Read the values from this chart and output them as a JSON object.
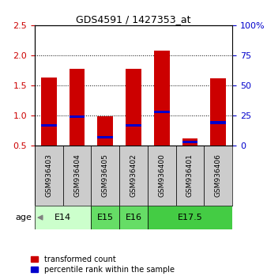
{
  "title": "GDS4591 / 1427353_at",
  "samples": [
    "GSM936403",
    "GSM936404",
    "GSM936405",
    "GSM936402",
    "GSM936400",
    "GSM936401",
    "GSM936406"
  ],
  "red_values": [
    1.63,
    1.78,
    0.98,
    1.78,
    2.08,
    0.62,
    1.62
  ],
  "blue_values": [
    0.84,
    0.98,
    0.64,
    0.84,
    1.06,
    0.56,
    0.88
  ],
  "red_bar_bottom": 0.5,
  "ylim": [
    0.5,
    2.5
  ],
  "yticks": [
    0.5,
    1.0,
    1.5,
    2.0,
    2.5
  ],
  "y2ticks": [
    0,
    25,
    50,
    75,
    100
  ],
  "y2labels": [
    "0",
    "25",
    "50",
    "75",
    "100%"
  ],
  "groups": [
    {
      "label": "E14",
      "start": 0,
      "end": 2,
      "color": "#ccffcc"
    },
    {
      "label": "E15",
      "start": 2,
      "end": 3,
      "color": "#66dd66"
    },
    {
      "label": "E16",
      "start": 3,
      "end": 4,
      "color": "#66dd66"
    },
    {
      "label": "E17.5",
      "start": 4,
      "end": 7,
      "color": "#44cc44"
    }
  ],
  "bar_color": "#cc0000",
  "blue_color": "#0000cc",
  "bar_width": 0.55,
  "bg_color": "#ffffff",
  "plot_bg": "#ffffff",
  "gray_bg": "#cccccc",
  "tick_color_left": "#cc0000",
  "tick_color_right": "#0000cc",
  "blue_bar_height": 0.04,
  "legend_items": [
    {
      "label": "transformed count",
      "color": "#cc0000"
    },
    {
      "label": "percentile rank within the sample",
      "color": "#0000cc"
    }
  ]
}
